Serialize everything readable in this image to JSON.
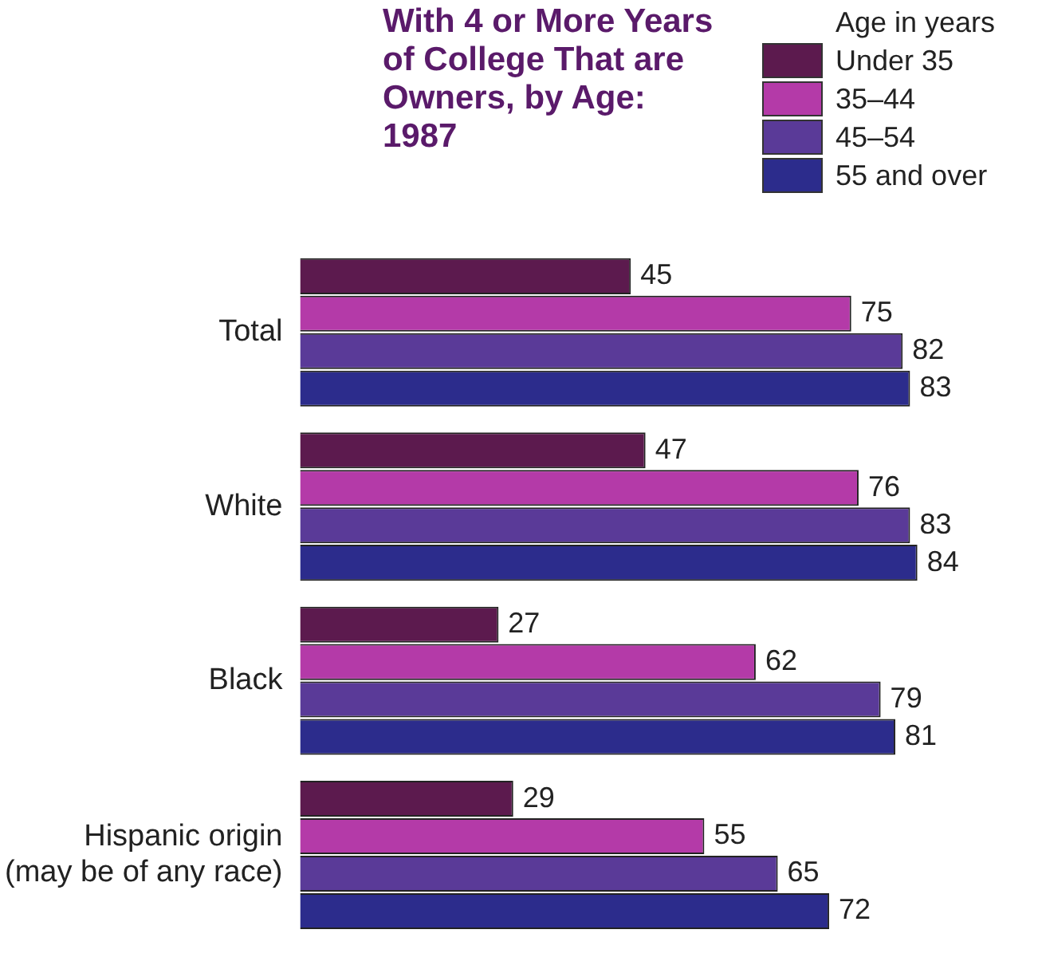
{
  "chart_data": {
    "type": "bar",
    "orientation": "horizontal",
    "title": "With 4 or More Years of College That are Owners, by Age: 1987",
    "legend_title": "Age in years",
    "legend": "top right",
    "categories": [
      "Total",
      "White",
      "Black",
      "Hispanic origin\n(may be of any race)"
    ],
    "series": [
      {
        "name": "Under 35",
        "color": "#5c1a4e",
        "values": [
          45,
          47,
          27,
          29
        ]
      },
      {
        "name": "35–44",
        "color": "#b43aa8",
        "values": [
          75,
          76,
          62,
          55
        ]
      },
      {
        "name": "45–54",
        "color": "#5a3a98",
        "values": [
          82,
          83,
          79,
          65
        ]
      },
      {
        "name": "55 and over",
        "color": "#2c2c8c",
        "values": [
          83,
          84,
          81,
          72
        ]
      }
    ],
    "tick_labels": "y",
    "data_labels": true
  }
}
